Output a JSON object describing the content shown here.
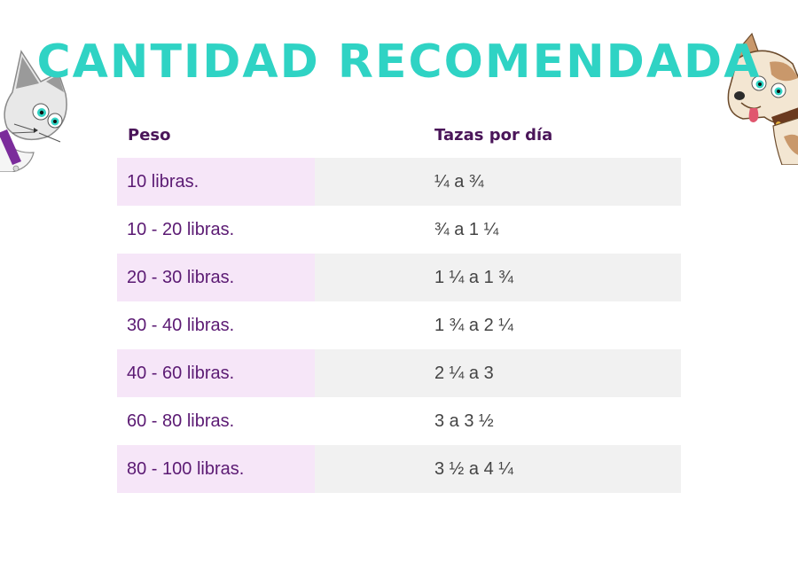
{
  "title": "CANTIDAD RECOMENDADA",
  "table": {
    "headers": {
      "weight": "Peso",
      "cups": "Tazas por día"
    },
    "rows": [
      {
        "weight": "10 libras.",
        "cups": "¼ a ¾"
      },
      {
        "weight": "10 - 20 libras.",
        "cups": "¾ a 1 ¼"
      },
      {
        "weight": "20 - 30 libras.",
        "cups": "1 ¼ a 1 ¾"
      },
      {
        "weight": "30 - 40 libras.",
        "cups": "1 ¾ a 2 ¼"
      },
      {
        "weight": "40 - 60 libras.",
        "cups": "2 ¼ a 3"
      },
      {
        "weight": "60 - 80 libras.",
        "cups": "3 a 3 ½"
      },
      {
        "weight": "80 - 100 libras.",
        "cups": "3 ½ a 4 ¼"
      }
    ]
  },
  "colors": {
    "title": "#2fd3c4",
    "header_text": "#4a1559",
    "weight_text": "#5b1a73",
    "cups_text": "#444444",
    "shade_weight": "#f6e6f8",
    "shade_cups": "#f1f1f1"
  },
  "illustrations": {
    "left": "cat-mascot-icon",
    "right": "dog-mascot-icon"
  }
}
